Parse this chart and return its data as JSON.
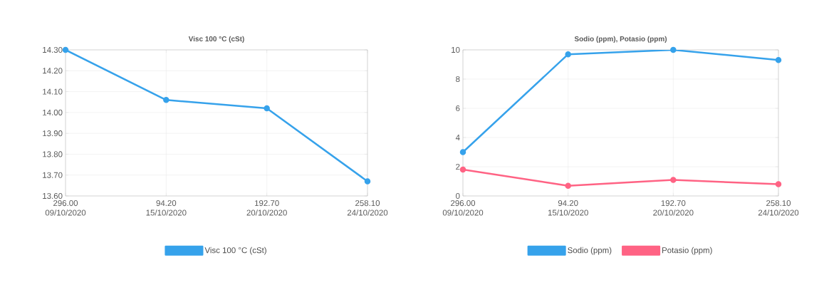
{
  "chart_data": [
    {
      "type": "line",
      "title": "Visc 100 °C (cSt)",
      "categories": [
        "296.00 09/10/2020",
        "94.20 15/10/2020",
        "192.70 20/10/2020",
        "258.10 24/10/2020"
      ],
      "series": [
        {
          "name": "Visc 100 °C (cSt)",
          "color": "#36a2eb",
          "values": [
            14.3,
            14.06,
            14.02,
            13.67
          ]
        }
      ],
      "ylim": [
        13.6,
        14.3
      ],
      "yticks": [
        {
          "value": 13.6,
          "label": "13.60"
        },
        {
          "value": 13.7,
          "label": "13.70"
        },
        {
          "value": 13.8,
          "label": "13.80"
        },
        {
          "value": 13.9,
          "label": "13.90"
        },
        {
          "value": 14.0,
          "label": "14.00"
        },
        {
          "value": 14.1,
          "label": "14.10"
        },
        {
          "value": 14.2,
          "label": "14.20"
        },
        {
          "value": 14.3,
          "label": "14.30"
        }
      ],
      "grid": true,
      "legend": "bottom",
      "marker": "circle",
      "line_style": "solid"
    },
    {
      "type": "line",
      "title": "Sodio (ppm), Potasio (ppm)",
      "categories": [
        "296.00 09/10/2020",
        "94.20 15/10/2020",
        "192.70 20/10/2020",
        "258.10 24/10/2020"
      ],
      "series": [
        {
          "name": "Sodio (ppm)",
          "color": "#36a2eb",
          "values": [
            3.0,
            9.7,
            10.0,
            9.3
          ]
        },
        {
          "name": "Potasio (ppm)",
          "color": "#ff6384",
          "values": [
            1.8,
            0.7,
            1.1,
            0.8
          ]
        }
      ],
      "ylim": [
        0,
        10
      ],
      "yticks": [
        0,
        2,
        4,
        6,
        8,
        10
      ],
      "grid": true,
      "legend": "bottom",
      "marker": "circle",
      "line_style": "solid"
    }
  ]
}
